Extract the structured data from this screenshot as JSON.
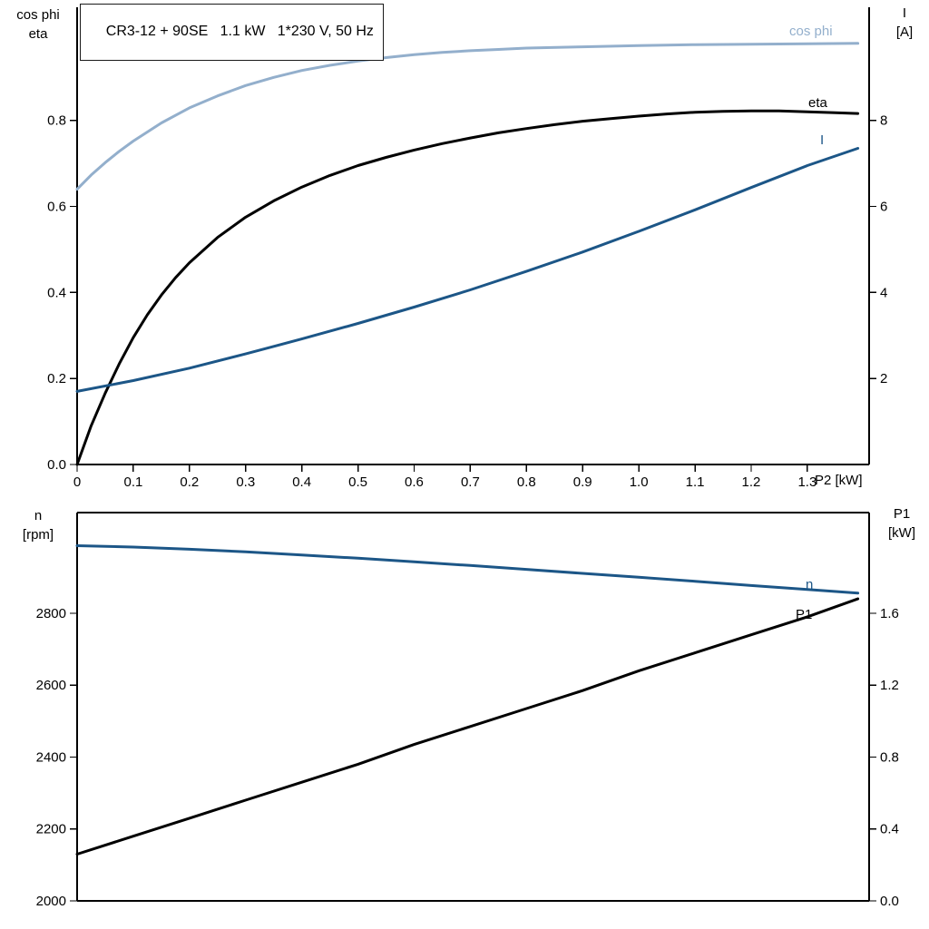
{
  "title_box": {
    "text": "CR3-12 + 90SE   1.1 kW   1*230 V, 50 Hz"
  },
  "colors": {
    "dark_blue": "#1c5687",
    "light_blue": "#93afcc",
    "black": "#000000",
    "background": "#ffffff"
  },
  "top_chart": {
    "left_axis_line1": "cos phi",
    "left_axis_line2": "eta",
    "right_axis_line1": "I",
    "right_axis_line2": "[A]",
    "x_axis_label": "P2 [kW]"
  },
  "bottom_chart": {
    "left_axis_line1": "n",
    "left_axis_line2": "[rpm]",
    "right_axis_line1": "P1",
    "right_axis_line2": "[kW]"
  },
  "curve_labels": {
    "cos_phi": "cos phi",
    "eta": "eta",
    "current": "I",
    "speed": "n",
    "p1": "P1"
  },
  "chart_data": [
    {
      "type": "line",
      "title": "CR3-12 + 90SE  1.1 kW  1*230 V, 50 Hz",
      "xlabel": "P2 [kW]",
      "xlim": [
        0,
        1.41
      ],
      "x_ticks": {
        "values": [
          0,
          0.1,
          0.2,
          0.3,
          0.4,
          0.5,
          0.6,
          0.7,
          0.8,
          0.9,
          1.0,
          1.1,
          1.2,
          1.3
        ],
        "labels": [
          "0",
          "0.1",
          "0.2",
          "0.3",
          "0.4",
          "0.5",
          "0.6",
          "0.7",
          "0.8",
          "0.9",
          "1.0",
          "1.1",
          "1.2",
          "1.3"
        ]
      },
      "left_axis": {
        "label": "cos phi / eta",
        "lim": [
          0,
          1.063
        ],
        "tick_values": [
          0.0,
          0.2,
          0.4,
          0.6,
          0.8
        ],
        "tick_labels": [
          "0.0",
          "0.2",
          "0.4",
          "0.6",
          "0.8"
        ]
      },
      "right_axis": {
        "label": "I [A]",
        "lim": [
          0,
          10.63
        ],
        "tick_values": [
          2,
          4,
          6,
          8
        ],
        "tick_labels": [
          "2",
          "4",
          "6",
          "8"
        ]
      },
      "grid": false,
      "series": [
        {
          "name": "cos phi",
          "axis": "left",
          "color": "#93afcc",
          "x": [
            0,
            0.025,
            0.05,
            0.075,
            0.1,
            0.15,
            0.2,
            0.25,
            0.3,
            0.35,
            0.4,
            0.45,
            0.5,
            0.55,
            0.6,
            0.65,
            0.7,
            0.75,
            0.8,
            0.9,
            1.0,
            1.1,
            1.2,
            1.3,
            1.39
          ],
          "y": [
            0.64,
            0.673,
            0.702,
            0.728,
            0.752,
            0.794,
            0.829,
            0.857,
            0.881,
            0.9,
            0.916,
            0.928,
            0.938,
            0.946,
            0.953,
            0.958,
            0.962,
            0.965,
            0.968,
            0.971,
            0.974,
            0.976,
            0.977,
            0.978,
            0.979
          ]
        },
        {
          "name": "eta",
          "axis": "left",
          "color": "#000000",
          "x": [
            0,
            0.025,
            0.05,
            0.075,
            0.1,
            0.125,
            0.15,
            0.175,
            0.2,
            0.25,
            0.3,
            0.35,
            0.4,
            0.45,
            0.5,
            0.55,
            0.6,
            0.65,
            0.7,
            0.75,
            0.8,
            0.85,
            0.9,
            0.95,
            1.0,
            1.05,
            1.1,
            1.15,
            1.2,
            1.25,
            1.3,
            1.35,
            1.39
          ],
          "y": [
            0,
            0.09,
            0.166,
            0.234,
            0.295,
            0.348,
            0.394,
            0.434,
            0.469,
            0.528,
            0.575,
            0.613,
            0.645,
            0.672,
            0.695,
            0.714,
            0.731,
            0.746,
            0.759,
            0.771,
            0.781,
            0.79,
            0.798,
            0.804,
            0.81,
            0.815,
            0.819,
            0.821,
            0.822,
            0.822,
            0.82,
            0.818,
            0.816
          ]
        },
        {
          "name": "I",
          "axis": "right",
          "color": "#1c5687",
          "x": [
            0,
            0.1,
            0.2,
            0.3,
            0.4,
            0.5,
            0.6,
            0.7,
            0.8,
            0.9,
            1.0,
            1.1,
            1.2,
            1.3,
            1.39
          ],
          "y": [
            1.7,
            1.95,
            2.24,
            2.57,
            2.92,
            3.28,
            3.66,
            4.06,
            4.49,
            4.94,
            5.42,
            5.92,
            6.44,
            6.95,
            7.35
          ]
        }
      ]
    },
    {
      "type": "line",
      "title": "",
      "xlabel": "",
      "xlim": [
        0,
        1.41
      ],
      "x_ticks": {
        "values": [],
        "labels": []
      },
      "left_axis": {
        "label": "n [rpm]",
        "lim": [
          2000,
          3080
        ],
        "tick_values": [
          2000,
          2200,
          2400,
          2600,
          2800
        ],
        "tick_labels": [
          "2000",
          "2200",
          "2400",
          "2600",
          "2800"
        ]
      },
      "right_axis": {
        "label": "P1 [kW]",
        "lim": [
          0,
          2.16
        ],
        "tick_values": [
          0.0,
          0.4,
          0.8,
          1.2,
          1.6
        ],
        "tick_labels": [
          "0.0",
          "0.4",
          "0.8",
          "1.2",
          "1.6"
        ]
      },
      "grid": false,
      "series": [
        {
          "name": "n",
          "axis": "left",
          "color": "#1c5687",
          "x": [
            0,
            0.1,
            0.2,
            0.3,
            0.4,
            0.5,
            0.6,
            0.7,
            0.8,
            0.9,
            1.0,
            1.1,
            1.2,
            1.3,
            1.39
          ],
          "y": [
            2988,
            2984,
            2978,
            2971,
            2962,
            2953,
            2943,
            2933,
            2922,
            2911,
            2900,
            2889,
            2877,
            2866,
            2856
          ]
        },
        {
          "name": "P1",
          "axis": "right",
          "color": "#000000",
          "x": [
            0,
            0.1,
            0.2,
            0.3,
            0.4,
            0.5,
            0.6,
            0.7,
            0.8,
            0.9,
            1.0,
            1.1,
            1.2,
            1.3,
            1.39
          ],
          "y": [
            0.26,
            0.36,
            0.46,
            0.56,
            0.66,
            0.76,
            0.87,
            0.97,
            1.07,
            1.17,
            1.28,
            1.38,
            1.48,
            1.58,
            1.68
          ]
        }
      ]
    }
  ]
}
